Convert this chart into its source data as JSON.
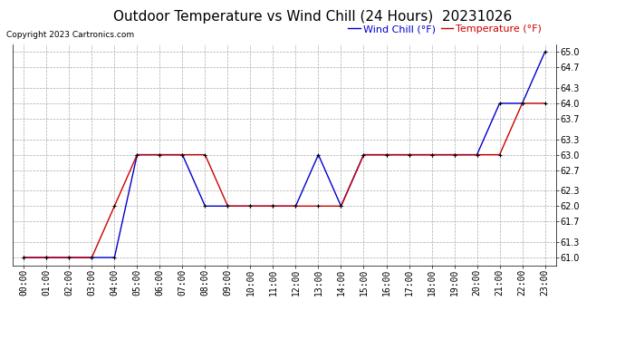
{
  "title": "Outdoor Temperature vs Wind Chill (24 Hours)  20231026",
  "copyright": "Copyright 2023 Cartronics.com",
  "legend_wind_chill": "Wind Chill (°F)",
  "legend_temperature": "Temperature (°F)",
  "x_labels": [
    "00:00",
    "01:00",
    "02:00",
    "03:00",
    "04:00",
    "05:00",
    "06:00",
    "07:00",
    "08:00",
    "09:00",
    "10:00",
    "11:00",
    "12:00",
    "13:00",
    "14:00",
    "15:00",
    "16:00",
    "17:00",
    "18:00",
    "19:00",
    "20:00",
    "21:00",
    "22:00",
    "23:00"
  ],
  "temperature": [
    61.0,
    61.0,
    61.0,
    61.0,
    62.0,
    63.0,
    63.0,
    63.0,
    63.0,
    62.0,
    62.0,
    62.0,
    62.0,
    62.0,
    62.0,
    63.0,
    63.0,
    63.0,
    63.0,
    63.0,
    63.0,
    63.0,
    64.0,
    64.0
  ],
  "wind_chill": [
    61.0,
    61.0,
    61.0,
    61.0,
    61.0,
    63.0,
    63.0,
    63.0,
    62.0,
    62.0,
    62.0,
    62.0,
    62.0,
    63.0,
    62.0,
    63.0,
    63.0,
    63.0,
    63.0,
    63.0,
    63.0,
    64.0,
    64.0,
    65.0
  ],
  "ylim_min": 60.85,
  "ylim_max": 65.15,
  "yticks": [
    61.0,
    61.3,
    61.7,
    62.0,
    62.3,
    62.7,
    63.0,
    63.3,
    63.7,
    64.0,
    64.3,
    64.7,
    65.0
  ],
  "temp_color": "#cc0000",
  "wind_color": "#0000cc",
  "marker_color": "#000000",
  "background_color": "#ffffff",
  "grid_color": "#aaaaaa",
  "title_fontsize": 11,
  "copyright_fontsize": 6.5,
  "legend_fontsize": 8,
  "axis_fontsize": 7
}
